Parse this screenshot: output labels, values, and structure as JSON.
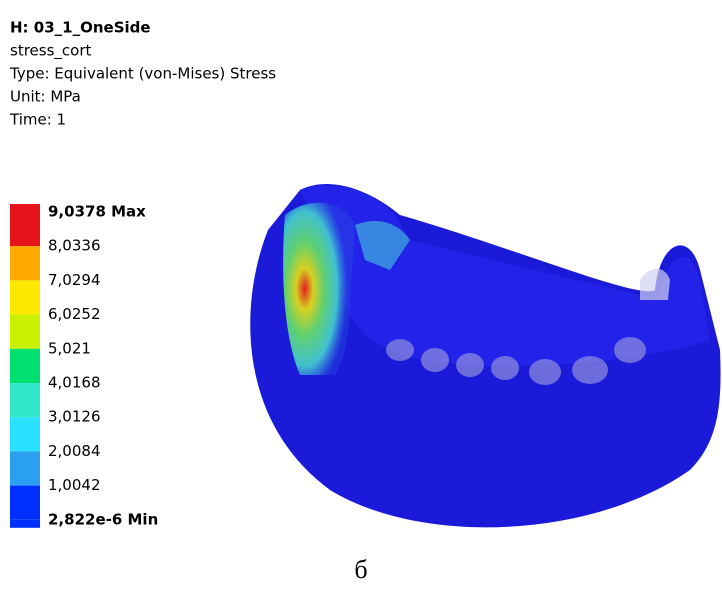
{
  "header": {
    "title": "H: 03_1_OneSide",
    "object": "stress_cort",
    "type": "Type: Equivalent (von-Mises) Stress",
    "unit": "Unit: MPa",
    "time": "Time: 1"
  },
  "legend": {
    "labels": [
      "9,0378 Max",
      "8,0336",
      "7,0294",
      "6,0252",
      "5,021",
      "4,0168",
      "3,0126",
      "2,0084",
      "1,0042",
      "2,822e-6 Min"
    ]
  },
  "caption": "б"
}
